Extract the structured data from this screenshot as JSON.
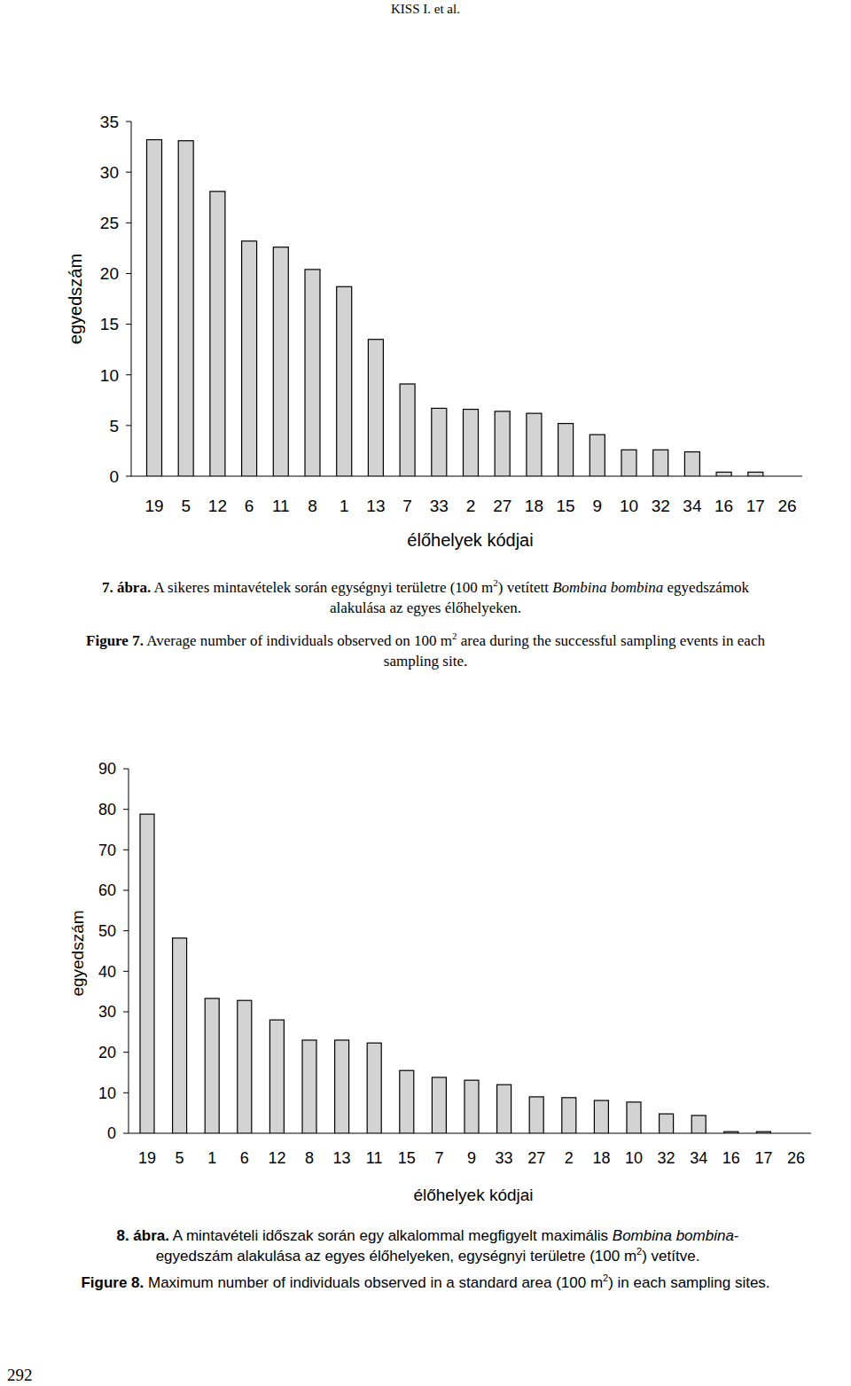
{
  "header": "KISS I. et al.",
  "chart_data": [
    {
      "type": "bar",
      "x_label": "élőhelyek kódjai",
      "y_label": "egyedszám",
      "categories": [
        "19",
        "5",
        "12",
        "6",
        "11",
        "8",
        "1",
        "13",
        "7",
        "33",
        "2",
        "27",
        "18",
        "15",
        "9",
        "10",
        "32",
        "34",
        "16",
        "17",
        "26"
      ],
      "values": [
        33.2,
        33.1,
        28.1,
        23.2,
        22.6,
        20.4,
        18.7,
        13.5,
        9.1,
        6.7,
        6.6,
        6.4,
        6.2,
        5.2,
        4.1,
        2.6,
        2.6,
        2.4,
        0.4,
        0.4,
        0
      ],
      "color": "#d3d3d3",
      "ylim": [
        0,
        35
      ],
      "yticks": [
        0,
        5,
        10,
        15,
        20,
        25,
        30,
        35
      ],
      "grid": false
    },
    {
      "type": "bar",
      "x_label": "élőhelyek kódjai",
      "y_label": "egyedszám",
      "categories": [
        "19",
        "5",
        "1",
        "6",
        "12",
        "8",
        "13",
        "11",
        "15",
        "7",
        "9",
        "33",
        "27",
        "2",
        "18",
        "10",
        "32",
        "34",
        "16",
        "17",
        "26"
      ],
      "values": [
        78.8,
        48.2,
        33.3,
        32.8,
        28.0,
        23.0,
        23.0,
        22.3,
        15.5,
        13.8,
        13.1,
        12.0,
        9.0,
        8.8,
        8.1,
        7.7,
        4.8,
        4.4,
        0.4,
        0.4,
        0
      ],
      "color": "#d3d3d3",
      "ylim": [
        0,
        90
      ],
      "yticks": [
        0,
        10,
        20,
        30,
        40,
        50,
        60,
        70,
        80,
        90
      ],
      "grid": false
    }
  ],
  "captions": [
    {
      "hu": {
        "runs": [
          {
            "text": "7. ábra.",
            "style": "bold"
          },
          {
            "text": " A sikeres mintavételek során egységnyi területre (100 m",
            "style": "plain"
          },
          {
            "text": "2",
            "style": "sup"
          },
          {
            "text": ") vetített ",
            "style": "plain"
          },
          {
            "text": "Bombina bombina",
            "style": "italic"
          },
          {
            "text": " egyedszámok alakulása az egyes élőhelyeken.",
            "style": "plain"
          }
        ]
      },
      "en": {
        "runs": [
          {
            "text": "Figure 7.",
            "style": "bold"
          },
          {
            "text": " Average number of individuals observed on 100 m",
            "style": "plain"
          },
          {
            "text": "2",
            "style": "sup"
          },
          {
            "text": " area during the successful sampling events in each sampling site.",
            "style": "plain"
          }
        ]
      }
    },
    {
      "hu": {
        "runs": [
          {
            "text": "8. ábra.",
            "style": "bold"
          },
          {
            "text": " A mintavételi időszak során egy alkalommal megfigyelt maximális ",
            "style": "plain"
          },
          {
            "text": "Bombina bombina",
            "style": "italic"
          },
          {
            "text": "-egyedszám alakulása az egyes élőhelyeken, egységnyi területre (100 m",
            "style": "plain"
          },
          {
            "text": "2",
            "style": "sup"
          },
          {
            "text": ") vetítve.",
            "style": "plain"
          }
        ]
      },
      "en": {
        "runs": [
          {
            "text": "Figure 8.",
            "style": "bold"
          },
          {
            "text": " Maximum number of individuals observed in a standard area (100 m",
            "style": "plain"
          },
          {
            "text": "2",
            "style": "sup"
          },
          {
            "text": ") in each sampling sites.",
            "style": "plain"
          }
        ]
      }
    }
  ],
  "page_number": 292
}
